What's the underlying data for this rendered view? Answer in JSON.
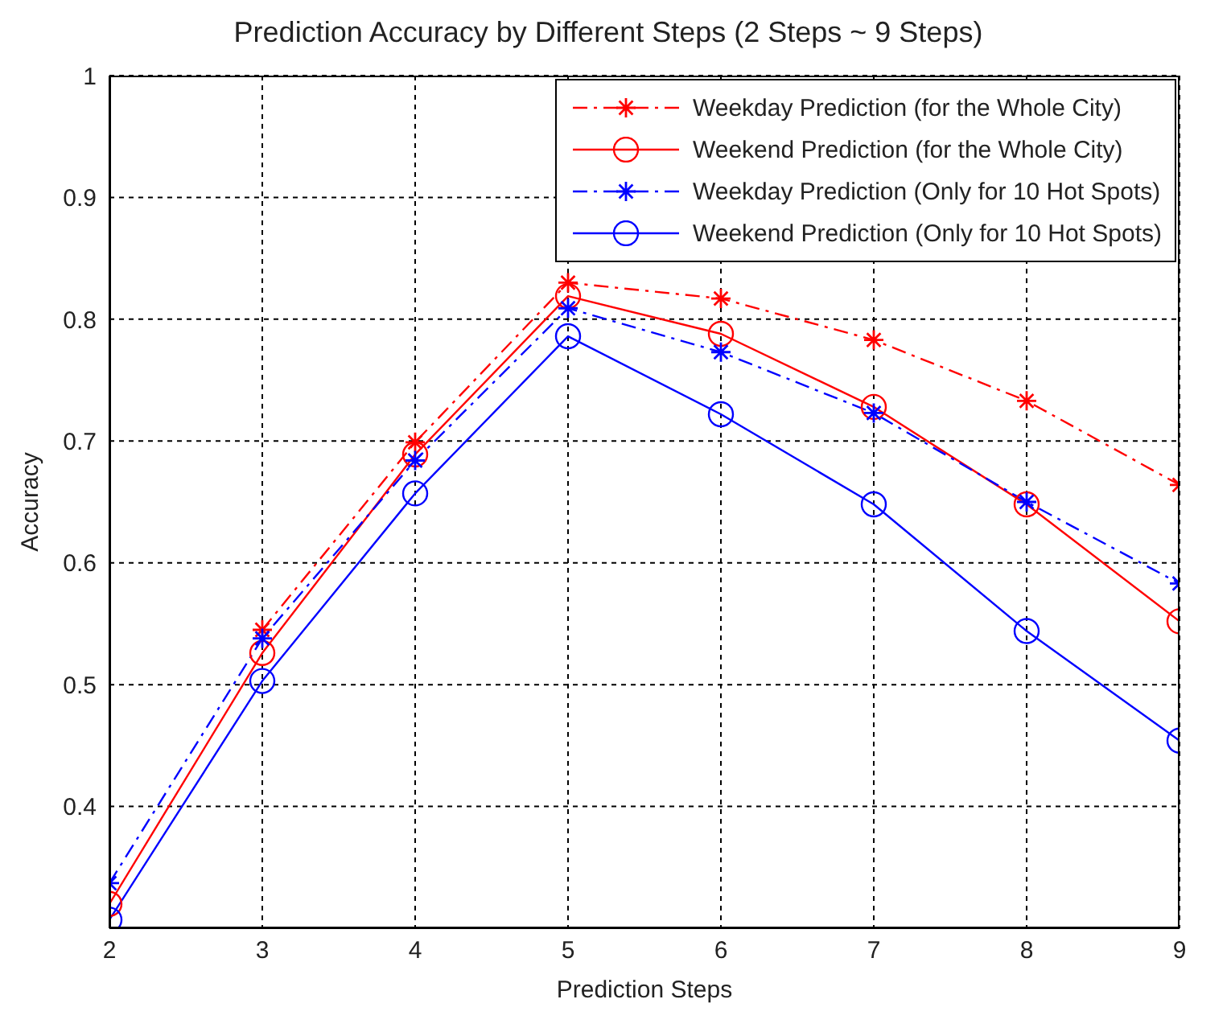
{
  "chart_data": {
    "type": "line",
    "title": "Prediction Accuracy by Different Steps (2 Steps ~ 9 Steps)",
    "xlabel": "Prediction Steps",
    "ylabel": "Accuracy",
    "x": [
      2,
      3,
      4,
      5,
      6,
      7,
      8,
      9
    ],
    "series": [
      {
        "name": "Weekday Prediction (for the Whole City)",
        "color": "#ff0000",
        "marker": "cross",
        "line_style": "dashed",
        "values": [
          null,
          0.545,
          0.699,
          0.83,
          0.817,
          0.783,
          0.733,
          0.664
        ]
      },
      {
        "name": "Weekend Prediction (for the Whole City)",
        "color": "#ff0000",
        "marker": "circle",
        "line_style": "solid",
        "values": [
          0.32,
          0.526,
          0.689,
          0.819,
          0.788,
          0.728,
          0.648,
          0.552
        ]
      },
      {
        "name": "Weekday Prediction (Only for 10 Hot Spots)",
        "color": "#0000ff",
        "marker": "cross",
        "line_style": "dashed",
        "values": [
          0.337,
          0.538,
          0.684,
          0.809,
          0.773,
          0.723,
          0.65,
          0.583
        ]
      },
      {
        "name": "Weekend Prediction (Only for 10 Hot Spots)",
        "color": "#0000ff",
        "marker": "circle",
        "line_style": "solid",
        "values": [
          0.307,
          0.503,
          0.657,
          0.786,
          0.722,
          0.648,
          0.544,
          0.454
        ]
      }
    ],
    "xlim": [
      2,
      9
    ],
    "xticks": [
      2,
      3,
      4,
      5,
      6,
      7,
      8,
      9
    ],
    "ylim": [
      0.3,
      1
    ],
    "yticks": [
      0.4,
      0.5,
      0.6,
      0.7,
      0.8,
      0.9,
      1
    ],
    "grid": true,
    "legend": "top right"
  }
}
